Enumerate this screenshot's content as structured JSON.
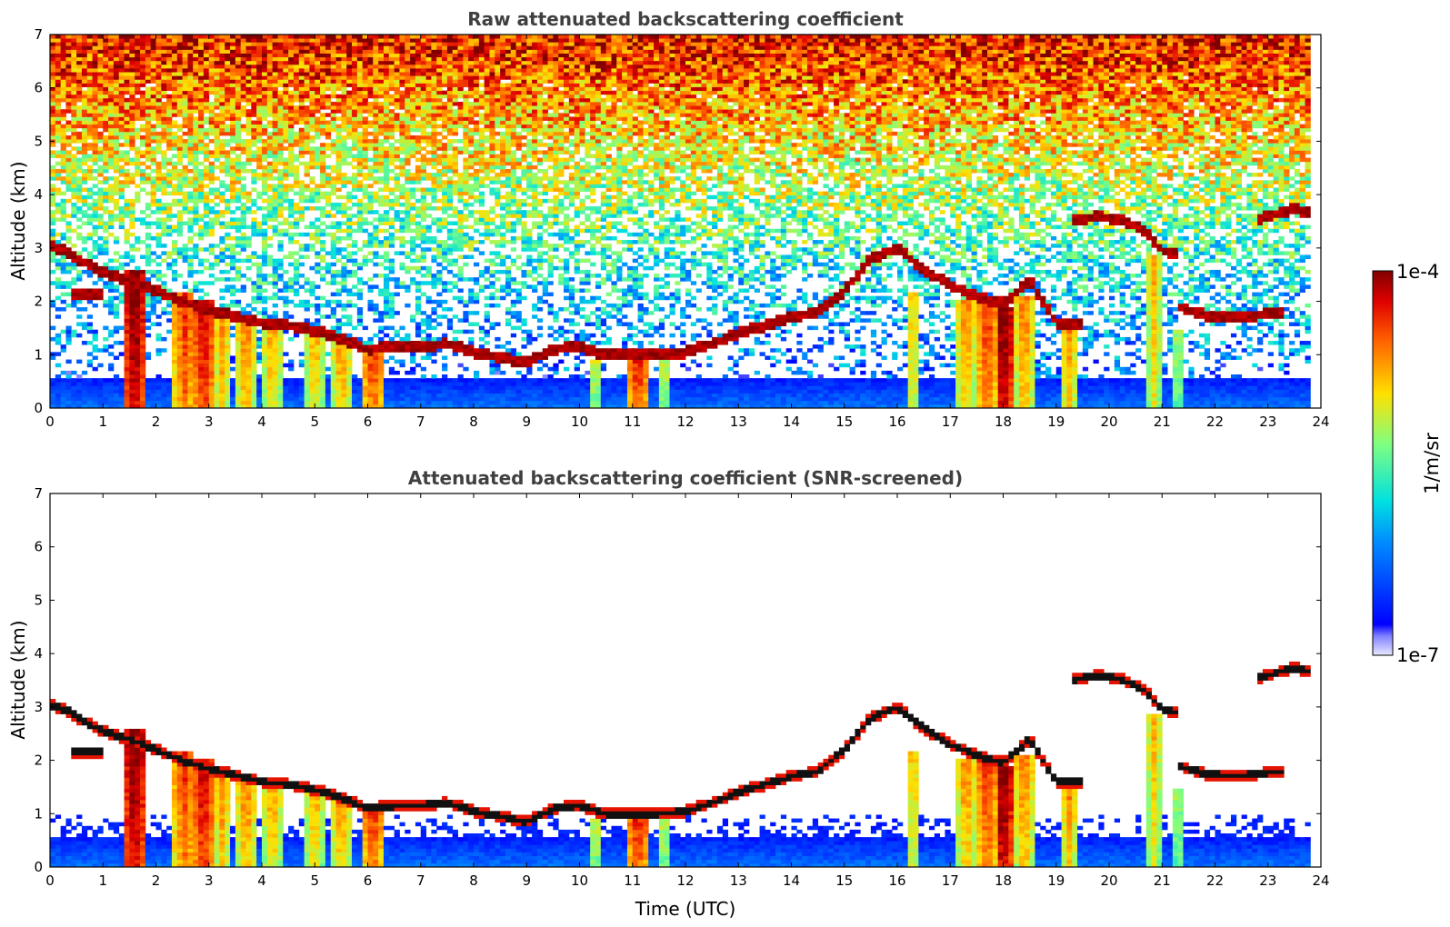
{
  "chart_data": [
    {
      "type": "heatmap",
      "title": "Raw attenuated backscattering coefficient",
      "xlabel": "",
      "ylabel": "Altitude (km)",
      "xlim": [
        0,
        24
      ],
      "ylim": [
        0,
        7
      ],
      "xticks": [
        0,
        1,
        2,
        3,
        4,
        5,
        6,
        7,
        8,
        9,
        10,
        11,
        12,
        13,
        14,
        15,
        16,
        17,
        18,
        19,
        20,
        21,
        22,
        23,
        24
      ],
      "yticks": [
        0,
        1,
        2,
        3,
        4,
        5,
        6,
        7
      ],
      "screened": false,
      "data_end_hour": 23.8,
      "cloud_layer": [
        [
          0,
          3.05
        ],
        [
          0.4,
          2.9
        ],
        [
          0.6,
          2.75
        ],
        [
          1.0,
          2.55
        ],
        [
          1.5,
          2.4
        ],
        [
          2.0,
          2.2
        ],
        [
          2.5,
          2.0
        ],
        [
          3.0,
          1.85
        ],
        [
          3.5,
          1.72
        ],
        [
          4.0,
          1.6
        ],
        [
          4.5,
          1.55
        ],
        [
          5.0,
          1.45
        ],
        [
          5.5,
          1.3
        ],
        [
          6.0,
          1.1
        ],
        [
          6.5,
          1.15
        ],
        [
          7.0,
          1.15
        ],
        [
          7.5,
          1.2
        ],
        [
          8.0,
          1.05
        ],
        [
          8.5,
          0.95
        ],
        [
          9.0,
          0.85
        ],
        [
          9.5,
          1.1
        ],
        [
          10.0,
          1.15
        ],
        [
          10.5,
          1.0
        ],
        [
          11.0,
          1.0
        ],
        [
          11.5,
          1.0
        ],
        [
          12.0,
          1.05
        ],
        [
          12.5,
          1.2
        ],
        [
          13.0,
          1.4
        ],
        [
          13.5,
          1.55
        ],
        [
          14.0,
          1.7
        ],
        [
          14.5,
          1.8
        ],
        [
          15.0,
          2.2
        ],
        [
          15.5,
          2.8
        ],
        [
          16.0,
          3.0
        ],
        [
          16.5,
          2.6
        ],
        [
          17.0,
          2.3
        ],
        [
          17.5,
          2.1
        ],
        [
          18.0,
          1.95
        ],
        [
          18.5,
          2.4
        ],
        [
          19.0,
          1.6
        ],
        [
          19.5,
          1.6
        ]
      ],
      "upper_layer": [
        [
          19.3,
          3.5
        ],
        [
          19.8,
          3.6
        ],
        [
          20.3,
          3.5
        ],
        [
          20.7,
          3.3
        ],
        [
          21.0,
          2.95
        ],
        [
          21.3,
          2.9
        ]
      ],
      "upper_layer_2": [
        [
          22.8,
          3.55
        ],
        [
          23.2,
          3.65
        ],
        [
          23.5,
          3.75
        ],
        [
          23.8,
          3.65
        ]
      ],
      "mid_layer": [
        [
          21.3,
          1.9
        ],
        [
          21.8,
          1.75
        ],
        [
          22.3,
          1.7
        ],
        [
          22.8,
          1.75
        ],
        [
          23.3,
          1.8
        ]
      ],
      "low_layer": [
        [
          0.4,
          2.15
        ],
        [
          1.0,
          2.15
        ]
      ],
      "precip_shafts": [
        [
          1.6,
          2.6,
          3.0
        ],
        [
          2.55,
          2.2,
          2.0
        ],
        [
          2.9,
          2.0,
          2.5
        ],
        [
          3.25,
          1.9,
          1.3
        ],
        [
          3.7,
          1.7,
          1.5
        ],
        [
          4.2,
          1.6,
          1.3
        ],
        [
          5.0,
          1.5,
          1.2
        ],
        [
          5.5,
          1.35,
          1.4
        ],
        [
          6.1,
          1.1,
          2.0
        ],
        [
          10.3,
          0.9,
          0.6
        ],
        [
          11.1,
          1.0,
          2.2
        ],
        [
          11.6,
          1.0,
          0.6
        ],
        [
          16.3,
          2.2,
          1.0
        ],
        [
          17.3,
          2.0,
          1.4
        ],
        [
          17.7,
          2.0,
          2.0
        ],
        [
          18.0,
          1.9,
          3.0
        ],
        [
          18.4,
          2.1,
          1.5
        ],
        [
          19.25,
          1.6,
          1.3
        ],
        [
          20.85,
          2.9,
          1.0
        ],
        [
          21.3,
          1.5,
          0.4
        ]
      ]
    },
    {
      "type": "heatmap",
      "title": "Attenuated backscattering coefficient (SNR-screened)",
      "xlabel": "Time (UTC)",
      "ylabel": "Altitude (km)",
      "xlim": [
        0,
        24
      ],
      "ylim": [
        0,
        7
      ],
      "xticks": [
        0,
        1,
        2,
        3,
        4,
        5,
        6,
        7,
        8,
        9,
        10,
        11,
        12,
        13,
        14,
        15,
        16,
        17,
        18,
        19,
        20,
        21,
        22,
        23,
        24
      ],
      "yticks": [
        0,
        1,
        2,
        3,
        4,
        5,
        6,
        7
      ],
      "screened": true,
      "data_end_hour": 23.8
    }
  ],
  "colorbar": {
    "label": "1/m/sr",
    "max_label": "1e-4",
    "min_label": "1e-7",
    "scale": "log",
    "colormap": "jet"
  }
}
